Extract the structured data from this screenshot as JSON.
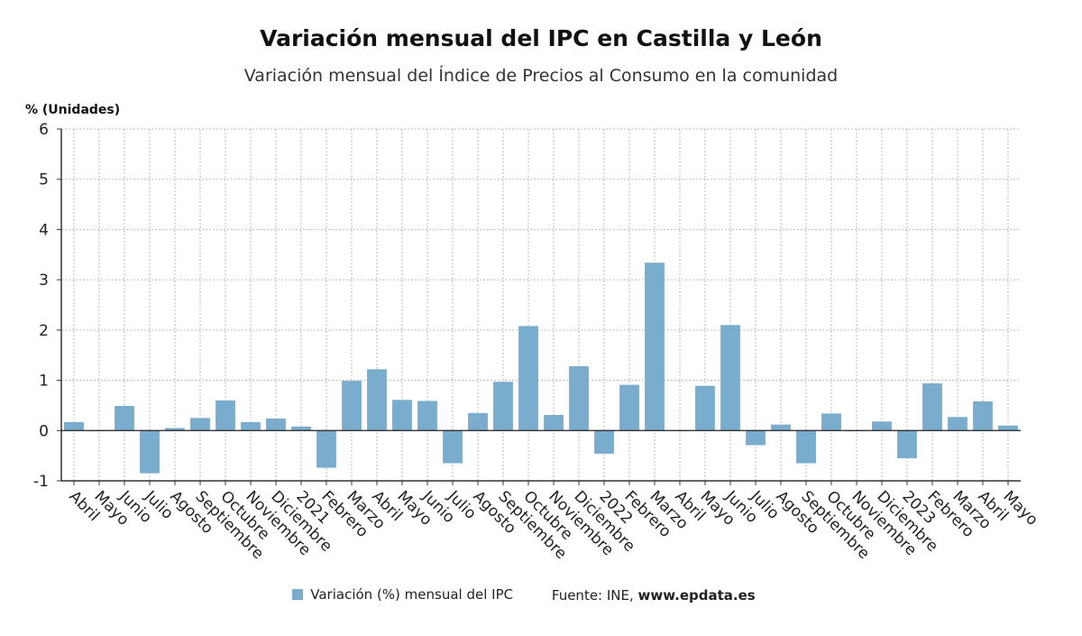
{
  "title": "Variación mensual del IPC en Castilla y León",
  "subtitle": "Variación mensual del Índice de Precios al Consumo en la comunidad",
  "legend": {
    "series_label": "Variación (%) mensual del IPC",
    "source_prefix": "Fuente: INE, ",
    "source_url": "www.epdata.es"
  },
  "colors": {
    "bar": "#7aaccd",
    "axis": "#333333",
    "grid": "#bbbbbb"
  },
  "chart_data": {
    "type": "bar",
    "ylabel": "% (Unidades)",
    "ylim": [
      -1,
      6
    ],
    "yticks": [
      -1,
      0,
      1,
      2,
      3,
      4,
      5,
      6
    ],
    "grid": true,
    "legend_position": "bottom",
    "categories": [
      "Abril",
      "Mayo",
      "Junio",
      "Julio",
      "Agosto",
      "Septiembre",
      "Octubre",
      "Noviembre",
      "Diciembre",
      "2021",
      "Febrero",
      "Marzo",
      "Abril",
      "Mayo",
      "Junio",
      "Julio",
      "Agosto",
      "Septiembre",
      "Octubre",
      "Noviembre",
      "Diciembre",
      "2022",
      "Febrero",
      "Marzo",
      "Abril",
      "Mayo",
      "Junio",
      "Julio",
      "Agosto",
      "Septiembre",
      "Octubre",
      "Noviembre",
      "Diciembre",
      "2023",
      "Febrero",
      "Marzo",
      "Abril",
      "Mayo"
    ],
    "series": [
      {
        "name": "Variación (%) mensual del IPC",
        "values": [
          0.17,
          0.0,
          0.49,
          -0.85,
          0.05,
          0.25,
          0.6,
          0.17,
          0.24,
          0.08,
          -0.74,
          0.99,
          1.22,
          0.61,
          0.59,
          -0.65,
          0.35,
          0.97,
          2.08,
          0.31,
          1.28,
          -0.46,
          0.91,
          3.34,
          0.0,
          0.89,
          2.1,
          -0.29,
          0.12,
          -0.65,
          0.34,
          0.0,
          0.18,
          -0.55,
          0.94,
          0.27,
          0.58,
          0.1
        ]
      }
    ]
  }
}
